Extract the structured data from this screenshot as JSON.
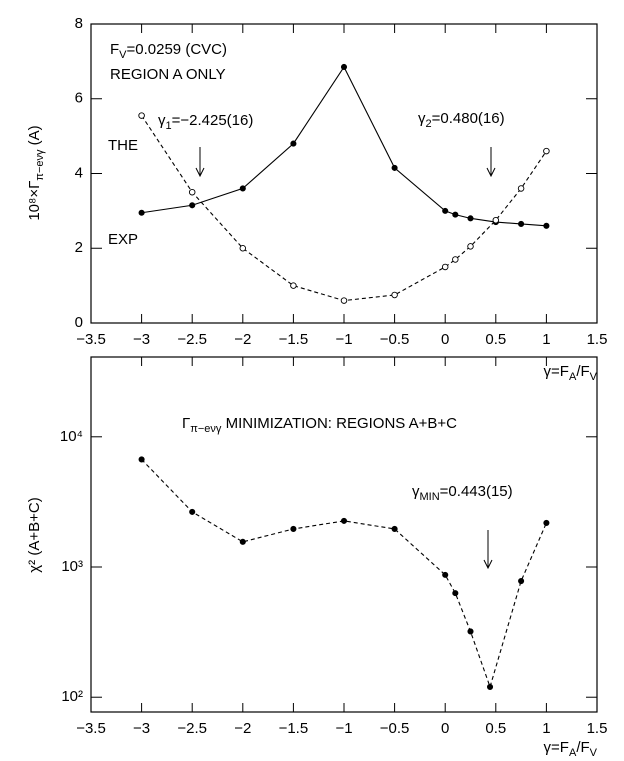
{
  "chart_data": [
    {
      "type": "line",
      "x": [
        -3,
        -2.5,
        -2,
        -1.5,
        -1,
        -0.5,
        0,
        0.1,
        0.25,
        0.5,
        0.75,
        1
      ],
      "xlim": [
        -3.5,
        1.5
      ],
      "xticks": [
        {
          "value": -3.5,
          "label": "−3.5"
        },
        {
          "value": -3,
          "label": "−3"
        },
        {
          "value": -2.5,
          "label": "−2.5"
        },
        {
          "value": -2,
          "label": "−2"
        },
        {
          "value": -1.5,
          "label": "−1.5"
        },
        {
          "value": -1,
          "label": "−1"
        },
        {
          "value": -0.5,
          "label": "−0.5"
        },
        0,
        0.5,
        1,
        1.5
      ],
      "ylim": [
        0,
        8
      ],
      "yticks": [
        0,
        2,
        4,
        6,
        8
      ],
      "y_label": {
        "parts": [
          {
            "t": "10⁸×Γ"
          },
          {
            "t": "π−eνγ",
            "sub": true
          },
          {
            "t": " (A)"
          }
        ]
      },
      "x_label": {
        "parts": [
          {
            "t": "γ=F"
          },
          {
            "t": "A",
            "sub": true
          },
          {
            "t": "/F"
          },
          {
            "t": "V",
            "sub": true
          }
        ]
      },
      "series": [
        {
          "name": "EXP",
          "color": "#000000",
          "marker": "filled",
          "dashed": false,
          "values": [
            2.95,
            3.15,
            3.6,
            4.8,
            6.85,
            4.15,
            3.0,
            2.9,
            2.8,
            2.7,
            2.65,
            2.6
          ]
        },
        {
          "name": "THE",
          "color": "#000000",
          "marker": "open",
          "dashed": true,
          "values": [
            5.55,
            3.5,
            2.0,
            1.0,
            0.6,
            0.75,
            1.5,
            1.7,
            2.05,
            2.75,
            3.6,
            4.6
          ]
        }
      ],
      "annotations": [
        {
          "parts": [
            {
              "t": "F"
            },
            {
              "t": "V",
              "sub": true
            },
            {
              "t": "=0.0259 (CVC)"
            }
          ]
        },
        {
          "parts": [
            {
              "t": "REGION A ONLY"
            }
          ]
        },
        {
          "parts": [
            {
              "t": "γ"
            },
            {
              "t": "1",
              "sub": true
            },
            {
              "t": "=−2.425(16)"
            }
          ]
        },
        {
          "parts": [
            {
              "t": "γ"
            },
            {
              "t": "2",
              "sub": true
            },
            {
              "t": "=0.480(16)"
            }
          ]
        }
      ]
    },
    {
      "type": "line",
      "log_y": true,
      "x": [
        -3,
        -2.5,
        -2,
        -1.5,
        -1,
        -0.5,
        0,
        0.1,
        0.25,
        0.443,
        0.75,
        1
      ],
      "xlim": [
        -3.5,
        1.5
      ],
      "xticks": [
        {
          "value": -3.5,
          "label": "−3.5"
        },
        {
          "value": -3,
          "label": "−3"
        },
        {
          "value": -2.5,
          "label": "−2.5"
        },
        {
          "value": -2,
          "label": "−2"
        },
        {
          "value": -1.5,
          "label": "−1.5"
        },
        {
          "value": -1,
          "label": "−1"
        },
        {
          "value": -0.5,
          "label": "−0.5"
        },
        0,
        0.5,
        1,
        1.5
      ],
      "ylim": [
        77,
        41000
      ],
      "yticks": [
        {
          "value": 100,
          "label": "10²"
        },
        {
          "value": 1000,
          "label": "10³"
        },
        {
          "value": 10000,
          "label": "10⁴"
        }
      ],
      "y_label": {
        "parts": [
          {
            "t": "χ² (A+B+C)"
          }
        ]
      },
      "x_label": {
        "parts": [
          {
            "t": "γ=F"
          },
          {
            "t": "A",
            "sub": true
          },
          {
            "t": "/F"
          },
          {
            "t": "V",
            "sub": true
          }
        ]
      },
      "series": [
        {
          "color": "#000000",
          "marker": "filled",
          "dashed": true,
          "values": [
            6700,
            2650,
            1560,
            1960,
            2260,
            1960,
            870,
            630,
            320,
            120,
            780,
            2180
          ]
        }
      ],
      "annotations": [
        {
          "parts": [
            {
              "t": "Γ"
            },
            {
              "t": "π−eνγ",
              "sub": true
            },
            {
              "t": " MINIMIZATION: REGIONS A+B+C"
            }
          ]
        },
        {
          "parts": [
            {
              "t": "γ"
            },
            {
              "t": "MIN",
              "sub": true
            },
            {
              "t": "=0.443(15)"
            }
          ]
        }
      ]
    }
  ]
}
